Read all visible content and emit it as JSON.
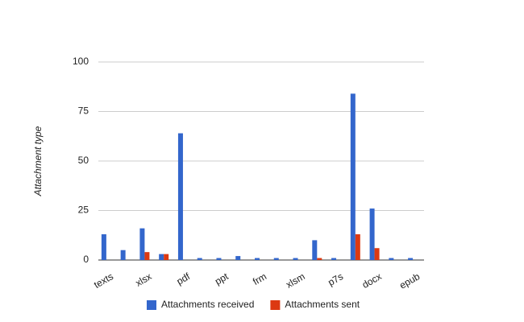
{
  "chart_data": {
    "type": "bar",
    "y_label": "Attachment type",
    "categories": [
      "texts",
      null,
      "xlsx",
      null,
      "pdf",
      null,
      "ppt",
      null,
      "frm",
      null,
      "xlsm",
      null,
      "p7s",
      null,
      "docx",
      null,
      "epub"
    ],
    "series": [
      {
        "name": "Attachments received",
        "color": "#3366cc",
        "values": [
          13,
          5,
          16,
          3,
          64,
          1,
          1,
          2,
          1,
          1,
          1,
          10,
          1,
          84,
          26,
          1,
          1
        ]
      },
      {
        "name": "Attachments sent",
        "color": "#dc3912",
        "values": [
          0,
          0,
          4,
          3,
          0,
          0,
          0,
          0,
          0,
          0,
          0,
          1,
          0,
          13,
          6,
          0,
          0
        ]
      }
    ],
    "ylim": [
      0,
      100
    ],
    "yticks": [
      0,
      25,
      50,
      75,
      100
    ],
    "grid": true,
    "legend": "bottom"
  }
}
